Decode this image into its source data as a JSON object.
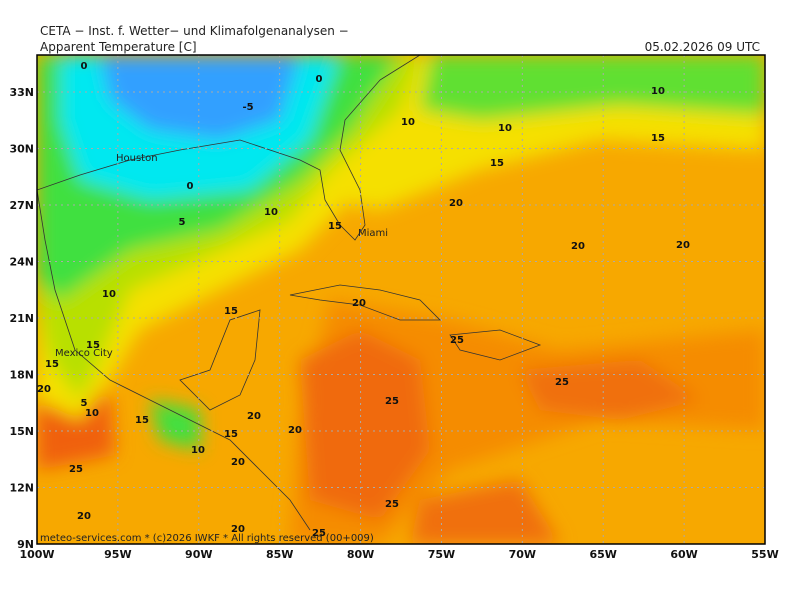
{
  "header": {
    "source": "CETA − Inst. f. Wetter− und Klimafolgenanalysen −",
    "title": "Apparent Temperature [C]",
    "valid_time": "05.02.2026 09 UTC"
  },
  "map": {
    "lat_labels": [
      "33N",
      "30N",
      "27N",
      "24N",
      "21N",
      "18N",
      "15N",
      "12N",
      "9N"
    ],
    "lon_labels": [
      "100W",
      "95W",
      "90W",
      "85W",
      "80W",
      "75W",
      "70W",
      "65W",
      "60W",
      "55W"
    ],
    "contour_labels": [
      "0",
      "0",
      "-5",
      "10",
      "10",
      "10",
      "15",
      "15",
      "0",
      "20",
      "5",
      "10",
      "15",
      "20",
      "20",
      "10",
      "20",
      "15",
      "25",
      "15",
      "15",
      "20",
      "25",
      "5",
      "25",
      "10",
      "20",
      "15",
      "20",
      "15",
      "10",
      "20",
      "25",
      "25",
      "20",
      "20",
      "25"
    ],
    "cities": [
      "Houston",
      "Miami",
      "Mexico City"
    ]
  },
  "footer": "meteo-services.com * (c)2026 IWKF * All rights reserved (00+009)"
}
